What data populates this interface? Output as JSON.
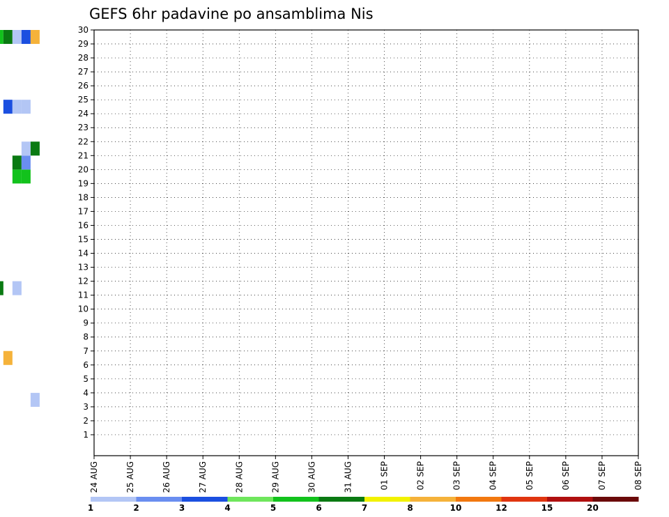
{
  "chart_data": {
    "type": "heatmap",
    "title": "GEFS 6hr padavine po ansamblima Nis",
    "xlabel": "",
    "ylabel": "",
    "x_ticks": [
      "24 AUG",
      "25 AUG",
      "26 AUG",
      "27 AUG",
      "28 AUG",
      "29 AUG",
      "30 AUG",
      "31 AUG",
      "01 SEP",
      "02 SEP",
      "03 SEP",
      "04 SEP",
      "05 SEP",
      "06 SEP",
      "07 SEP",
      "08 SEP"
    ],
    "y_ticks": [
      "1",
      "2",
      "3",
      "4",
      "5",
      "6",
      "7",
      "8",
      "9",
      "10",
      "11",
      "12",
      "13",
      "14",
      "15",
      "16",
      "17",
      "18",
      "19",
      "20",
      "21",
      "22",
      "23",
      "24",
      "25",
      "26",
      "27",
      "28",
      "29",
      "30"
    ],
    "members": 30,
    "steps_per_day": 4,
    "grid": true,
    "colorbar": {
      "labels": [
        "1",
        "2",
        "3",
        "4",
        "5",
        "6",
        "7",
        "8",
        "10",
        "12",
        "15",
        "20"
      ],
      "colors": [
        "#b3c6f5",
        "#6a8ef0",
        "#1b4fe0",
        "#6fe65c",
        "#12c21c",
        "#0a7a12",
        "#f2f200",
        "#f5b23a",
        "#f2780f",
        "#e0350f",
        "#b00f0f",
        "#6b0a0a"
      ]
    },
    "cells": [
      [
        8.25,
        30,
        7
      ],
      [
        8.25,
        29,
        3
      ],
      [
        8.5,
        29,
        3
      ],
      [
        8.25,
        28,
        3
      ],
      [
        8.5,
        28,
        5
      ],
      [
        8.25,
        27,
        2
      ],
      [
        8.5,
        27,
        2
      ],
      [
        8.5,
        26,
        5
      ],
      [
        8.75,
        26,
        2
      ],
      [
        9.0,
        26,
        2
      ],
      [
        8.25,
        24,
        1
      ],
      [
        8.25,
        23,
        3
      ],
      [
        8.25,
        22,
        2
      ],
      [
        8.5,
        22,
        1
      ],
      [
        8.25,
        21,
        2
      ],
      [
        8.5,
        21,
        1
      ],
      [
        8.25,
        20,
        5
      ],
      [
        8.5,
        20,
        2
      ],
      [
        8.5,
        19,
        4
      ],
      [
        8.5,
        18,
        1
      ],
      [
        8.25,
        18,
        1
      ],
      [
        8.0,
        18,
        1
      ],
      [
        8.75,
        19,
        2
      ],
      [
        8.25,
        17,
        1
      ],
      [
        8.5,
        17,
        2
      ],
      [
        8.25,
        16,
        1
      ],
      [
        8.5,
        16,
        2
      ],
      [
        8.25,
        15,
        2
      ],
      [
        8.5,
        15,
        3
      ],
      [
        8.0,
        14,
        2
      ],
      [
        8.25,
        14,
        2
      ],
      [
        8.25,
        12,
        2
      ],
      [
        8.5,
        12,
        1
      ],
      [
        8.5,
        11,
        2
      ],
      [
        8.25,
        9,
        2
      ],
      [
        8.5,
        9,
        3
      ],
      [
        8.0,
        7,
        2
      ],
      [
        8.25,
        7,
        2
      ],
      [
        8.5,
        7,
        3
      ],
      [
        8.5,
        5,
        1
      ],
      [
        8.5,
        4,
        4
      ],
      [
        8.25,
        2,
        2
      ],
      [
        8.25,
        1,
        2
      ],
      [
        8.25,
        0,
        4
      ],
      [
        8.5,
        0,
        5
      ],
      [
        8.75,
        4,
        2
      ],
      [
        8.75,
        5,
        4
      ],
      [
        8.75,
        12,
        6
      ],
      [
        8.5,
        12,
        6
      ],
      [
        8.75,
        13,
        2
      ],
      [
        8.75,
        16,
        3
      ],
      [
        9.0,
        16,
        2
      ],
      [
        9.0,
        17,
        2
      ],
      [
        9.0,
        19,
        8
      ],
      [
        8.75,
        23,
        2
      ],
      [
        9.25,
        26,
        1
      ],
      [
        9.25,
        27,
        1
      ],
      [
        9.25,
        30,
        1
      ],
      [
        9.0,
        30,
        1
      ],
      [
        9.0,
        5,
        3
      ],
      [
        9.0,
        4,
        3
      ],
      [
        9.25,
        4,
        7
      ],
      [
        9.25,
        5,
        1
      ],
      [
        9.25,
        21,
        1
      ],
      [
        9.25,
        22,
        1
      ],
      [
        9.5,
        22,
        5
      ],
      [
        9.25,
        18,
        1
      ],
      [
        9.5,
        18,
        4
      ],
      [
        9.25,
        17,
        1
      ],
      [
        9.5,
        17,
        1
      ],
      [
        9.75,
        18,
        1
      ],
      [
        9.0,
        11,
        1
      ],
      [
        9.25,
        11,
        1
      ],
      [
        9.5,
        11,
        1
      ],
      [
        9.25,
        12,
        1
      ],
      [
        9.25,
        13,
        1
      ],
      [
        9.0,
        13,
        1
      ],
      [
        9.25,
        8,
        1
      ],
      [
        9.25,
        1,
        1
      ],
      [
        9.0,
        14,
        1
      ],
      [
        9.25,
        20,
        1
      ],
      [
        9.25,
        19,
        1
      ],
      [
        10.0,
        26,
        1
      ],
      [
        10.25,
        26,
        2
      ],
      [
        10.5,
        22,
        1
      ],
      [
        9.0,
        5,
        1
      ],
      [
        9.25,
        10,
        1
      ],
      [
        9.0,
        10,
        1
      ],
      [
        9.5,
        10,
        1
      ],
      [
        9.5,
        9,
        1
      ],
      [
        7.75,
        25,
        3
      ],
      [
        7.75,
        22,
        1
      ],
      [
        11.0,
        11,
        2
      ],
      [
        11.5,
        23,
        1
      ],
      [
        11.75,
        23,
        2
      ],
      [
        12.0,
        23,
        2
      ],
      [
        11.5,
        6,
        1
      ],
      [
        11.75,
        5,
        3
      ],
      [
        11.75,
        9,
        1
      ],
      [
        12.0,
        8,
        1
      ],
      [
        12.25,
        8,
        3
      ],
      [
        12.25,
        7,
        2
      ],
      [
        12.25,
        6,
        1
      ],
      [
        11.75,
        4,
        1
      ],
      [
        11.75,
        15,
        1
      ],
      [
        12.25,
        15,
        2
      ],
      [
        12.0,
        21,
        3
      ],
      [
        12.25,
        21,
        2
      ],
      [
        12.75,
        21,
        3
      ],
      [
        12.75,
        18,
        3
      ],
      [
        12.75,
        19,
        6
      ],
      [
        13.0,
        18,
        2
      ],
      [
        12.75,
        13,
        15
      ],
      [
        12.75,
        23,
        1
      ],
      [
        12.75,
        24,
        1
      ],
      [
        12.75,
        27,
        1
      ],
      [
        12.5,
        23,
        1
      ],
      [
        12.5,
        4,
        1
      ],
      [
        12.75,
        4,
        1
      ],
      [
        13.25,
        14,
        5
      ],
      [
        13.5,
        14,
        1
      ],
      [
        14.0,
        28,
        1
      ],
      [
        14.25,
        28,
        1
      ],
      [
        14.25,
        25,
        2
      ],
      [
        14.5,
        18,
        1
      ],
      [
        14.5,
        15,
        1
      ],
      [
        14.75,
        1,
        1
      ],
      [
        15.5,
        12,
        1
      ],
      [
        15.5,
        2,
        1
      ],
      [
        15.75,
        7,
        1
      ],
      [
        16.0,
        16,
        5
      ],
      [
        16.25,
        16,
        12
      ],
      [
        16.0,
        8,
        5
      ],
      [
        16.5,
        17,
        3
      ],
      [
        16.75,
        15,
        3
      ],
      [
        17.0,
        15,
        3
      ],
      [
        17.25,
        15,
        1
      ],
      [
        17.25,
        16,
        5
      ],
      [
        16.75,
        20,
        8
      ],
      [
        16.75,
        8,
        1
      ],
      [
        17.0,
        8,
        1
      ],
      [
        17.25,
        8,
        3
      ],
      [
        17.5,
        8,
        1
      ],
      [
        17.75,
        8,
        1
      ],
      [
        18.0,
        8,
        1
      ],
      [
        17.0,
        11,
        1
      ],
      [
        17.0,
        10,
        1
      ],
      [
        17.0,
        12,
        1
      ],
      [
        17.0,
        24,
        1
      ],
      [
        17.25,
        25,
        10
      ],
      [
        17.5,
        24,
        2
      ],
      [
        17.75,
        1,
        1
      ],
      [
        18.0,
        1,
        2
      ],
      [
        18.0,
        11,
        1
      ],
      [
        18.0,
        24,
        2
      ],
      [
        18.25,
        24,
        3
      ],
      [
        18.75,
        30,
        1
      ],
      [
        19.0,
        30,
        1
      ],
      [
        19.0,
        5,
        5
      ],
      [
        18.75,
        14,
        1
      ],
      [
        19.0,
        14,
        1
      ],
      [
        18.75,
        17,
        1
      ],
      [
        19.25,
        30,
        8
      ],
      [
        19.5,
        30,
        2
      ],
      [
        19.75,
        30,
        8
      ],
      [
        20.0,
        30,
        1
      ],
      [
        19.75,
        28,
        1
      ],
      [
        20.0,
        28,
        3
      ],
      [
        20.25,
        28,
        1
      ],
      [
        20.25,
        8,
        1
      ],
      [
        20.5,
        7,
        3
      ],
      [
        20.0,
        5,
        15
      ],
      [
        20.25,
        5,
        5
      ],
      [
        20.5,
        5,
        1
      ],
      [
        20.75,
        5,
        2
      ],
      [
        21.0,
        5,
        1
      ],
      [
        20.5,
        0,
        2
      ],
      [
        20.75,
        0,
        2
      ],
      [
        20.25,
        19,
        1
      ],
      [
        20.75,
        30,
        2
      ],
      [
        21.0,
        30,
        4
      ],
      [
        21.25,
        30,
        5
      ],
      [
        21.5,
        30,
        6
      ],
      [
        21.75,
        30,
        1
      ],
      [
        22.0,
        30,
        3
      ],
      [
        22.25,
        30,
        8
      ],
      [
        21.0,
        13,
        5
      ],
      [
        20.75,
        13,
        1
      ],
      [
        21.25,
        12,
        6
      ],
      [
        20.75,
        7,
        5
      ],
      [
        21.0,
        7,
        3
      ],
      [
        21.5,
        7,
        8
      ],
      [
        21.0,
        3,
        1
      ],
      [
        20.75,
        22,
        2
      ],
      [
        21.0,
        22,
        1
      ],
      [
        21.5,
        25,
        3
      ],
      [
        21.75,
        25,
        1
      ],
      [
        22.0,
        25,
        1
      ],
      [
        21.75,
        20,
        5
      ],
      [
        22.0,
        20,
        5
      ],
      [
        21.75,
        21,
        6
      ],
      [
        22.0,
        21,
        2
      ],
      [
        22.0,
        22,
        1
      ],
      [
        22.25,
        22,
        6
      ],
      [
        21.75,
        12,
        1
      ],
      [
        22.25,
        4,
        1
      ]
    ]
  },
  "colors": {
    "frame": "#000000",
    "grid": "#000000",
    "background": "#ffffff"
  }
}
